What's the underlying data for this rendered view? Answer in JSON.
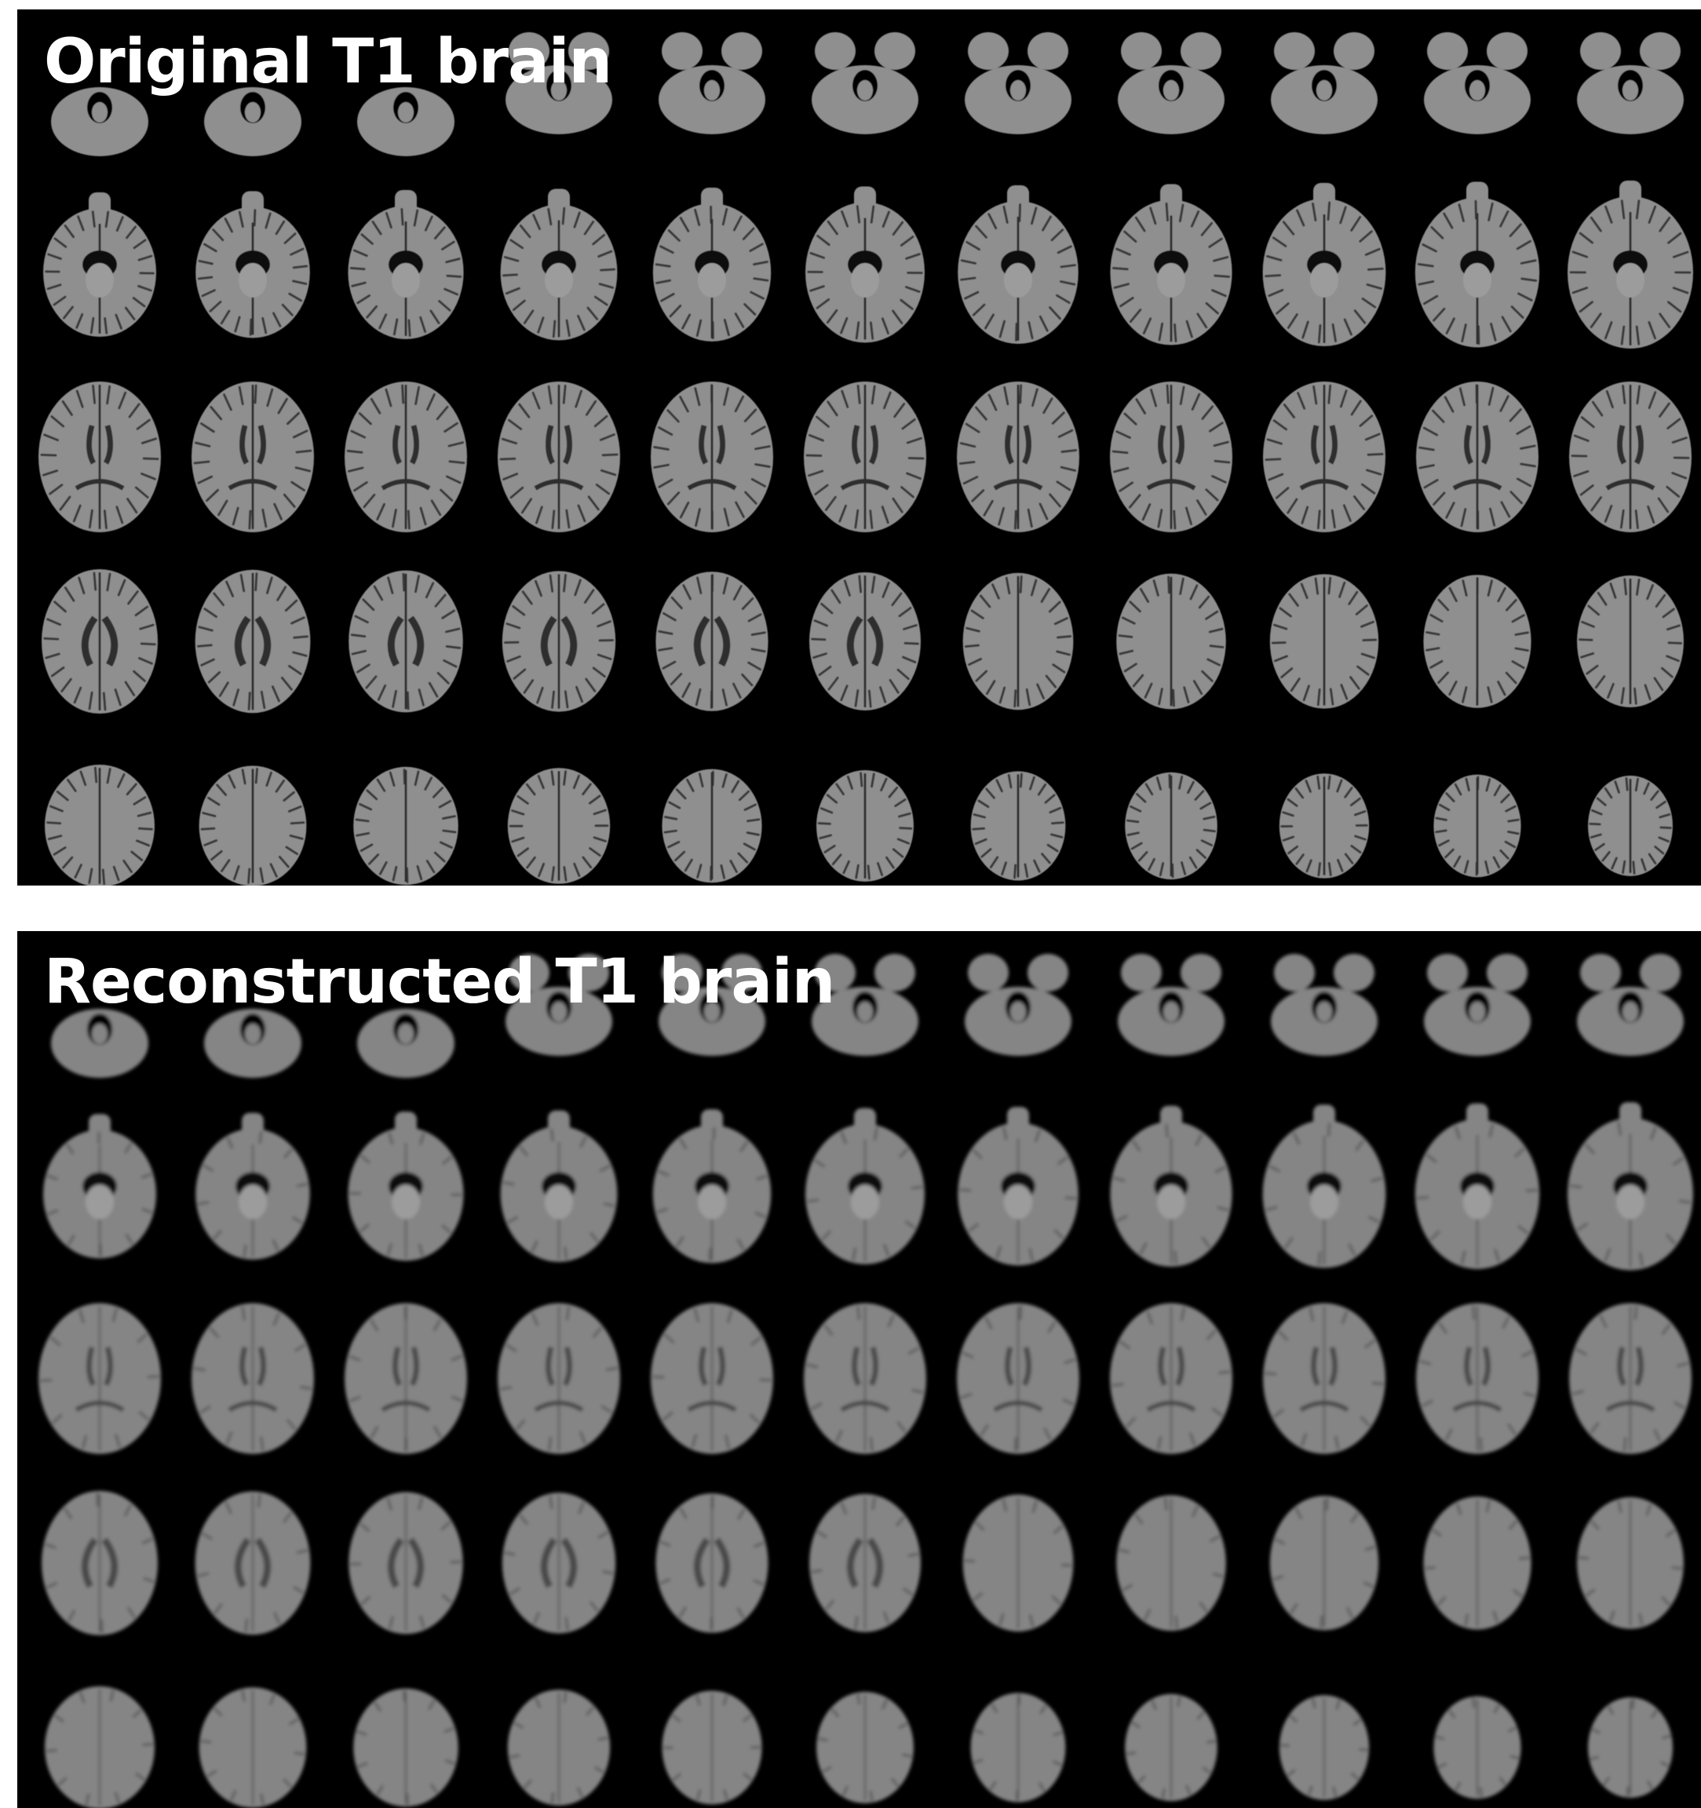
{
  "figure": {
    "panels": [
      {
        "id": "original",
        "title": "Original T1 brain",
        "rows": 5,
        "cols": 11,
        "colors": {
          "background": "#000000",
          "tissue": "#8f8f8f",
          "dark": "#2e2e2e",
          "title": "#ffffff"
        }
      },
      {
        "id": "reconstructed",
        "title": "Reconstructed T1 brain",
        "rows": 5,
        "cols": 11,
        "colors": {
          "background": "#000000",
          "tissue": "#858585",
          "dark": "#4a4a4a",
          "title": "#ffffff"
        }
      }
    ]
  }
}
